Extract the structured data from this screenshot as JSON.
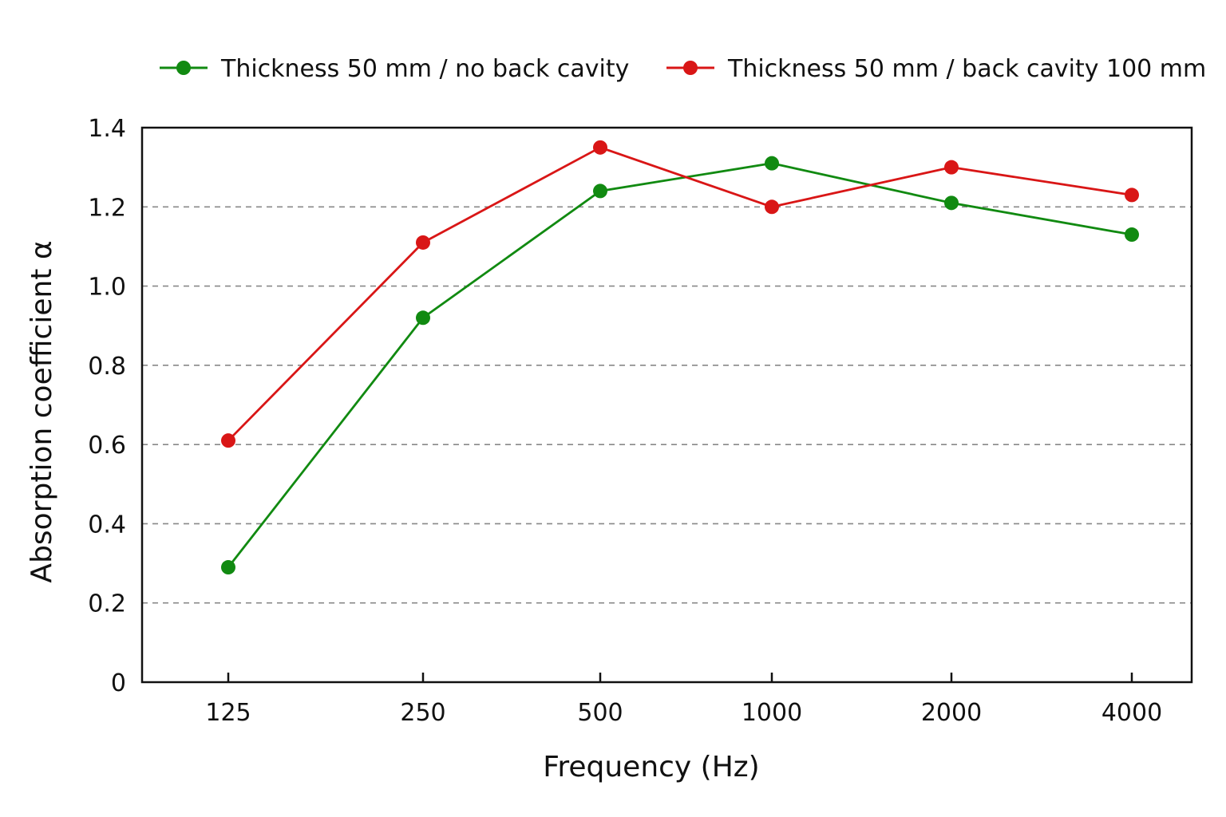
{
  "chart_data": {
    "type": "line",
    "categories": [
      "125",
      "250",
      "500",
      "1000",
      "2000",
      "4000"
    ],
    "series": [
      {
        "name": "Thickness 50 mm / no back cavity",
        "color": "#118a11",
        "values": [
          0.29,
          0.92,
          1.24,
          1.31,
          1.21,
          1.13
        ]
      },
      {
        "name": "Thickness 50 mm / back cavity 100 mm",
        "color": "#d91616",
        "values": [
          0.61,
          1.11,
          1.35,
          1.2,
          1.3,
          1.23
        ]
      }
    ],
    "xlabel": "Frequency (Hz)",
    "ylabel": "Absorption coefficient α",
    "ylim": [
      0,
      1.4
    ],
    "yticks": [
      "0",
      "0.2",
      "0.4",
      "0.6",
      "0.8",
      "1.0",
      "1.2",
      "1.4"
    ],
    "grid": "horizontal dashed",
    "legend_position": "top"
  }
}
